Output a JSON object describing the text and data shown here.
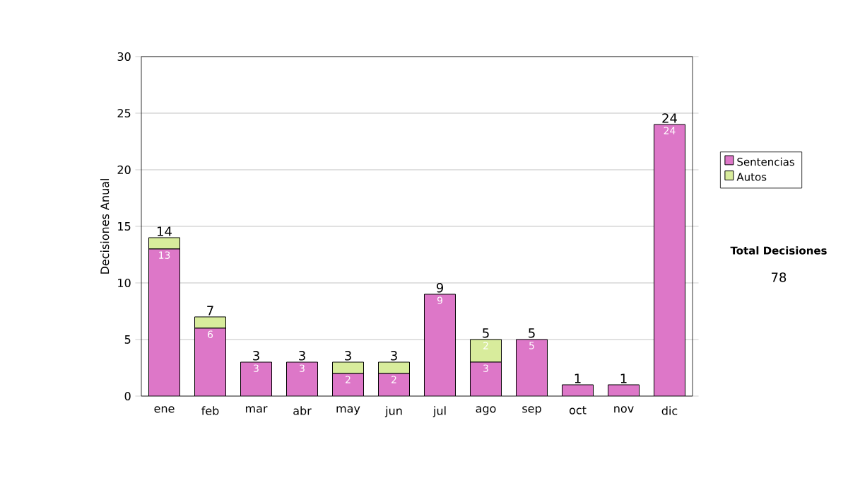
{
  "chart_data": {
    "type": "bar",
    "stacked": true,
    "ylabel": "Decisiones Anual",
    "categories": [
      "ene",
      "feb",
      "mar",
      "abr",
      "may",
      "jun",
      "jul",
      "ago",
      "sep",
      "oct",
      "nov",
      "dic"
    ],
    "series": [
      {
        "name": "Sentencias",
        "color": "#dd77c8",
        "values": [
          13,
          6,
          3,
          3,
          2,
          2,
          9,
          3,
          5,
          1,
          1,
          24
        ],
        "value_labels": [
          "13",
          "6",
          "3",
          "3",
          "2",
          "2",
          "9",
          "3",
          "5",
          null,
          null,
          "24"
        ]
      },
      {
        "name": "Autos",
        "color": "#d8ec9c",
        "values": [
          1,
          1,
          0,
          0,
          1,
          1,
          0,
          2,
          0,
          0,
          0,
          0
        ],
        "value_labels": [
          null,
          null,
          null,
          null,
          null,
          null,
          null,
          "2",
          null,
          null,
          null,
          null
        ]
      }
    ],
    "totals": [
      "14",
      "7",
      "3",
      "3",
      "3",
      "3",
      "9",
      "5",
      "5",
      "1",
      "1",
      "24"
    ],
    "ylim": [
      0,
      30
    ],
    "yticks": [
      0,
      5,
      10,
      15,
      20,
      25,
      30
    ],
    "grid": "y",
    "legend": "right",
    "annotations": [
      "Total Decisiones",
      "78"
    ]
  }
}
